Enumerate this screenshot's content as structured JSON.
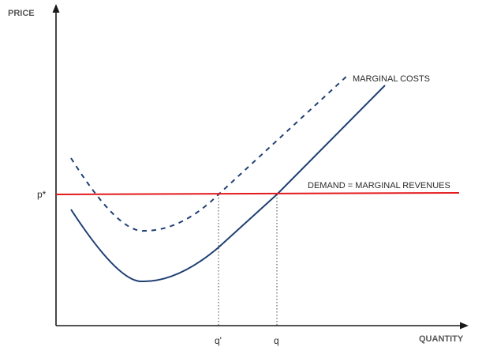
{
  "axes": {
    "y_title": "PRICE",
    "x_title": "QUANTITY"
  },
  "labels": {
    "price_level": "p*",
    "quantity_q_prime": "q'",
    "quantity_q": "q",
    "marginal_costs": "MARGINAL COSTS",
    "demand": "DEMAND = MARGINAL REVENUES"
  },
  "colors": {
    "axis": "#1a1a1a",
    "cost_curve": "#1f3f73",
    "demand_line": "#e31a1c",
    "guide_line": "#444444"
  },
  "styles": {
    "shifted_cost_curve": "dashed",
    "original_cost_curve": "solid",
    "quantity_guides": "dotted"
  }
}
